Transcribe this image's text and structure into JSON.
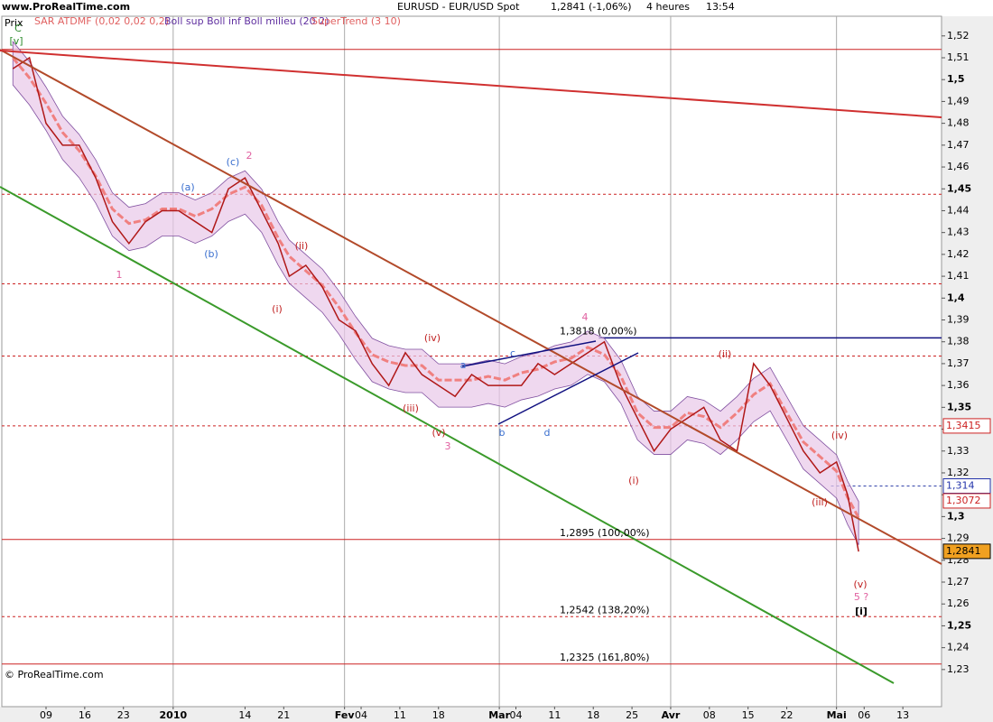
{
  "header": {
    "site": "www.ProRealTime.com",
    "indicators": [
      "SAR ATDMF (0,02 0,02 0,2)",
      "Boll sup Boll inf Boll milieu (20 2)",
      "SuperTrend (3 10)"
    ],
    "title": "EURUSD - EUR/USD Spot",
    "quote": "1,2841 (-1,06%)",
    "timeframe": "4 heures",
    "time": "13:54"
  },
  "chart_data": {
    "type": "line",
    "y_label": "Prix",
    "color": "#b01818",
    "x": [
      2,
      5,
      8,
      11,
      14,
      17,
      20,
      23,
      26,
      29,
      32,
      35,
      38,
      41,
      44,
      47,
      50,
      52,
      55,
      58,
      61,
      64,
      67,
      70,
      73,
      76,
      79,
      82,
      85,
      88,
      91,
      94,
      97,
      100,
      103,
      106,
      109,
      112,
      115,
      118,
      121,
      124,
      127,
      130,
      133,
      136,
      139,
      142,
      145,
      148,
      151,
      153,
      155
    ],
    "values": [
      1.505,
      1.51,
      1.48,
      1.47,
      1.47,
      1.455,
      1.435,
      1.425,
      1.435,
      1.44,
      1.44,
      1.435,
      1.43,
      1.45,
      1.455,
      1.44,
      1.425,
      1.41,
      1.415,
      1.405,
      1.39,
      1.385,
      1.37,
      1.36,
      1.375,
      1.365,
      1.36,
      1.355,
      1.365,
      1.36,
      1.36,
      1.36,
      1.37,
      1.365,
      1.37,
      1.375,
      1.38,
      1.36,
      1.345,
      1.33,
      1.34,
      1.345,
      1.35,
      1.335,
      1.33,
      1.37,
      1.36,
      1.345,
      1.33,
      1.32,
      1.325,
      1.31,
      1.284
    ],
    "xlim": [
      0,
      170
    ],
    "ylim": [
      1.213,
      1.529
    ],
    "xticks": [
      {
        "value": 8,
        "label": "09"
      },
      {
        "value": 15,
        "label": "16"
      },
      {
        "value": 22,
        "label": "23"
      },
      {
        "value": 31,
        "label": "2010"
      },
      {
        "value": 44,
        "label": "14"
      },
      {
        "value": 51,
        "label": "21"
      },
      {
        "value": 62,
        "label": "Fev"
      },
      {
        "value": 65,
        "label": "04"
      },
      {
        "value": 72,
        "label": "11"
      },
      {
        "value": 79,
        "label": "18"
      },
      {
        "value": 90,
        "label": "Mar"
      },
      {
        "value": 93,
        "label": "04"
      },
      {
        "value": 100,
        "label": "11"
      },
      {
        "value": 107,
        "label": "18"
      },
      {
        "value": 114,
        "label": "25"
      },
      {
        "value": 121,
        "label": "Avr"
      },
      {
        "value": 128,
        "label": "08"
      },
      {
        "value": 135,
        "label": "15"
      },
      {
        "value": 142,
        "label": "22"
      },
      {
        "value": 151,
        "label": "Mai"
      },
      {
        "value": 156,
        "label": "06"
      },
      {
        "value": 163,
        "label": "13"
      }
    ],
    "yticks": [
      {
        "value": 1.23,
        "label": "1,23"
      },
      {
        "value": 1.24,
        "label": "1,24"
      },
      {
        "value": 1.25,
        "label": "1,25"
      },
      {
        "value": 1.26,
        "label": "1,26"
      },
      {
        "value": 1.27,
        "label": "1,27"
      },
      {
        "value": 1.28,
        "label": "1,28"
      },
      {
        "value": 1.29,
        "label": "1,29"
      },
      {
        "value": 1.3,
        "label": "1,3"
      },
      {
        "value": 1.31,
        "label": "1,31"
      },
      {
        "value": 1.32,
        "label": "1,32"
      },
      {
        "value": 1.33,
        "label": "1,33"
      },
      {
        "value": 1.34,
        "label": "1,34"
      },
      {
        "value": 1.35,
        "label": "1,35"
      },
      {
        "value": 1.36,
        "label": "1,36"
      },
      {
        "value": 1.37,
        "label": "1,37"
      },
      {
        "value": 1.38,
        "label": "1,38"
      },
      {
        "value": 1.39,
        "label": "1,39"
      },
      {
        "value": 1.4,
        "label": "1,4"
      },
      {
        "value": 1.41,
        "label": "1,41"
      },
      {
        "value": 1.42,
        "label": "1,42"
      },
      {
        "value": 1.43,
        "label": "1,43"
      },
      {
        "value": 1.44,
        "label": "1,44"
      },
      {
        "value": 1.45,
        "label": "1,45"
      },
      {
        "value": 1.46,
        "label": "1,46"
      },
      {
        "value": 1.47,
        "label": "1,47"
      },
      {
        "value": 1.48,
        "label": "1,48"
      },
      {
        "value": 1.49,
        "label": "1,49"
      },
      {
        "value": 1.5,
        "label": "1,5"
      },
      {
        "value": 1.51,
        "label": "1,51"
      },
      {
        "value": 1.52,
        "label": "1,52"
      }
    ],
    "levels": [
      {
        "value": 1.5138,
        "color": "#cc2222",
        "dash": false
      },
      {
        "value": 1.4475,
        "color": "#cc2222",
        "dash": true
      },
      {
        "value": 1.4065,
        "color": "#cc2222",
        "dash": true
      },
      {
        "value": 1.3735,
        "color": "#cc2222",
        "dash": true
      },
      {
        "value": 1.3415,
        "color": "#cc2222",
        "dash": true
      },
      {
        "value": 1.3818,
        "color": "#101080",
        "dash": false,
        "x0": 108,
        "label": "1,3818 (0,00%)"
      },
      {
        "value": 1.314,
        "color": "#3344aa",
        "dash": true,
        "x0": 150
      },
      {
        "value": 1.2895,
        "color": "#cc2222",
        "dash": false,
        "label": "1,2895 (100,00%)"
      },
      {
        "value": 1.2542,
        "color": "#cc2222",
        "dash": true,
        "label": "1,2542 (138,20%)"
      },
      {
        "value": 1.2325,
        "color": "#cc2222",
        "dash": false,
        "label": "1,2325 (161,80%)"
      }
    ],
    "price_labels": [
      {
        "value": 1.3415,
        "label": "1,3415",
        "color": "#cc2222",
        "fill": "#ffffff"
      },
      {
        "value": 1.314,
        "label": "1,314",
        "color": "#2233aa",
        "fill": "#ffffff"
      },
      {
        "value": 1.3072,
        "label": "1,3072",
        "color": "#cc2222",
        "fill": "#ffffff"
      },
      {
        "value": 1.2841,
        "label": "1,2841",
        "color": "#000000",
        "fill": "#f0a020"
      }
    ],
    "annotations": [
      {
        "text": "C",
        "color": "#2a8a2a"
      },
      {
        "text": "[v]",
        "color": "#2a8a2a"
      },
      {
        "text": "(a)",
        "color": "#3a6fcf"
      },
      {
        "text": "(b)",
        "color": "#3a6fcf"
      },
      {
        "text": "(c)",
        "color": "#3a6fcf"
      },
      {
        "text": "2",
        "color": "#e060a0"
      },
      {
        "text": "1",
        "color": "#e060a0"
      },
      {
        "text": "(i)",
        "color": "#c02020"
      },
      {
        "text": "(ii)",
        "color": "#c02020"
      },
      {
        "text": "(iii)",
        "color": "#c02020"
      },
      {
        "text": "(iv)",
        "color": "#c02020"
      },
      {
        "text": "(v)",
        "color": "#c02020"
      },
      {
        "text": "3",
        "color": "#e060a0"
      },
      {
        "text": "4",
        "color": "#e060a0"
      },
      {
        "text": "a",
        "color": "#3a6fcf"
      },
      {
        "text": "b",
        "color": "#3a6fcf"
      },
      {
        "text": "c",
        "color": "#3a6fcf"
      },
      {
        "text": "d",
        "color": "#3a6fcf"
      },
      {
        "text": "(i)",
        "color": "#c02020"
      },
      {
        "text": "(ii)",
        "color": "#c02020"
      },
      {
        "text": "(iii)",
        "color": "#c02020"
      },
      {
        "text": "(iv)",
        "color": "#c02020"
      },
      {
        "text": "(v)",
        "color": "#c02020"
      },
      {
        "text": "5 ?",
        "color": "#e060a0"
      },
      {
        "text": "[i]",
        "color": "#000000"
      }
    ]
  },
  "footer": "© ProRealTime.com"
}
